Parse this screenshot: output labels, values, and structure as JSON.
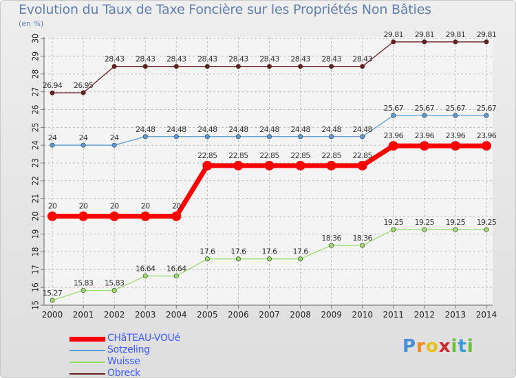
{
  "header": {
    "title": "Evolution du Taux de Taxe Foncière sur les Propriétés Non Bâties",
    "unit": "(en %)"
  },
  "chart_data": {
    "type": "line",
    "x": [
      "2000",
      "2001",
      "2002",
      "2003",
      "2004",
      "2005",
      "2006",
      "2007",
      "2008",
      "2009",
      "2010",
      "2011",
      "2012",
      "2013",
      "2014"
    ],
    "ylim": [
      15,
      30
    ],
    "yticks": [
      15,
      16,
      17,
      18,
      19,
      20,
      21,
      22,
      23,
      24,
      25,
      26,
      27,
      28,
      29,
      30
    ],
    "grid": true,
    "series": [
      {
        "name": "Obreck",
        "color": "#6b1e1e",
        "width": 1.3,
        "values": [
          26.94,
          26.95,
          28.43,
          28.43,
          28.43,
          28.43,
          28.43,
          28.43,
          28.43,
          28.43,
          28.43,
          29.81,
          29.81,
          29.81,
          29.81
        ],
        "labels": [
          "26.94",
          "26.95",
          "28.43",
          "28.43",
          "28.43",
          "28.43",
          "28.43",
          "28.43",
          "28.43",
          "28.43",
          "28.43",
          "29.81",
          "29.81",
          "29.81",
          "29.81"
        ]
      },
      {
        "name": "Sotzeling",
        "color": "#5b9bd5",
        "width": 1.3,
        "values": [
          24,
          24,
          24,
          24.48,
          24.48,
          24.48,
          24.48,
          24.48,
          24.48,
          24.48,
          24.48,
          25.67,
          25.67,
          25.67,
          25.67
        ],
        "labels": [
          "24",
          "24",
          "24",
          "24.48",
          "24.48",
          "24.48",
          "24.48",
          "24.48",
          "24.48",
          "24.48",
          "24.48",
          "25.67",
          "25.67",
          "25.67",
          "25.67"
        ]
      },
      {
        "name": "CHâTEAU-VOUé",
        "color": "#ff0000",
        "width": 7,
        "values": [
          20,
          20,
          20,
          20,
          20,
          22.85,
          22.85,
          22.85,
          22.85,
          22.85,
          22.85,
          23.96,
          23.96,
          23.96,
          23.96
        ],
        "labels": [
          "20",
          "20",
          "20",
          "20",
          "20",
          "22.85",
          "22.85",
          "22.85",
          "22.85",
          "22.85",
          "22.85",
          "23.96",
          "23.96",
          "23.96",
          "23.96"
        ]
      },
      {
        "name": "Wuisse",
        "color": "#99dd66",
        "width": 1.3,
        "values": [
          15.27,
          15.83,
          15.83,
          16.64,
          16.64,
          17.6,
          17.6,
          17.6,
          17.6,
          18.36,
          18.36,
          19.25,
          19.25,
          19.25,
          19.25
        ],
        "labels": [
          "15.27",
          "15.83",
          "15.83",
          "16.64",
          "16.64",
          "17.6",
          "17.6",
          "17.6",
          "17.6",
          "18.36",
          "18.36",
          "19.25",
          "19.25",
          "19.25",
          "19.25"
        ]
      }
    ]
  },
  "legend": {
    "items": [
      {
        "label": "CHâTEAU-VOUé",
        "color": "#ff0000"
      },
      {
        "label": "Sotzeling",
        "color": "#5b9bd5"
      },
      {
        "label": "Wuisse",
        "color": "#99dd66"
      },
      {
        "label": "Obreck",
        "color": "#6b1e1e"
      }
    ]
  },
  "logo": {
    "text": "Proxiti",
    "letters": [
      "P",
      "r",
      "o",
      "x",
      "i",
      "t",
      "i"
    ],
    "colors": [
      "#4a8fd6",
      "#f08a1c",
      "#e8c21a",
      "#d12a2a",
      "#6abf3a",
      "#3a9ad6",
      "#6abf3a"
    ]
  }
}
